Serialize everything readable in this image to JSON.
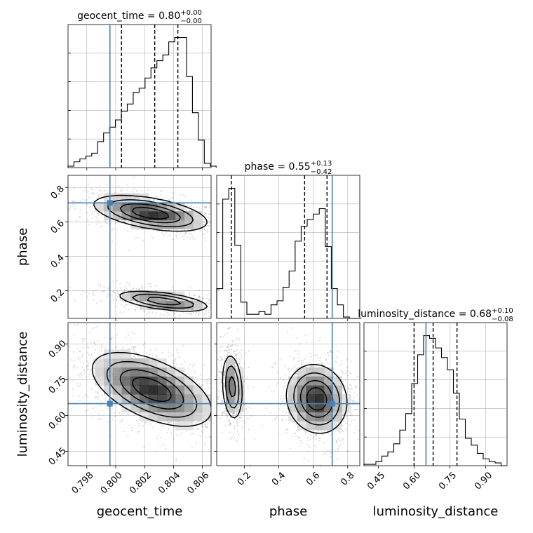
{
  "chart_data": {
    "type": "corner",
    "parameters": [
      "geocent_time",
      "phase",
      "luminosity_distance"
    ],
    "truths": {
      "geocent_time": 0.7996,
      "phase": 0.71,
      "luminosity_distance": 0.65
    },
    "truth_color": "#4682b4",
    "axis_labels": {
      "geocent_time": "geocent_time",
      "phase": "phase",
      "luminosity_distance": "luminosity_distance"
    },
    "ranges": {
      "geocent_time": [
        0.7967,
        0.8066
      ],
      "phase": [
        0.04,
        0.87
      ],
      "luminosity_distance": [
        0.39,
        0.99
      ]
    },
    "ticks": {
      "geocent_time": {
        "values": [
          0.798,
          0.8,
          0.802,
          0.804,
          0.806
        ],
        "labels": [
          "0.798",
          "0.800",
          "0.802",
          "0.804",
          "0.806"
        ]
      },
      "phase": {
        "values": [
          0.2,
          0.4,
          0.6,
          0.8
        ],
        "labels": [
          "0.2",
          "0.4",
          "0.6",
          "0.8"
        ]
      },
      "luminosity_distance": {
        "values": [
          0.45,
          0.6,
          0.75,
          0.9
        ],
        "labels": [
          "0.45",
          "0.60",
          "0.75",
          "0.90"
        ]
      }
    },
    "marginals": [
      {
        "param": "geocent_time",
        "title": {
          "base": "geocent_time = 0.80",
          "plus": "+0.00",
          "minus": "−0.00"
        },
        "quantiles": [
          0.8004,
          0.8027,
          0.8043
        ],
        "bins": {
          "start": 0.7967,
          "width": 0.00041,
          "counts": [
            1,
            4,
            6,
            8,
            10,
            18,
            24,
            28,
            33,
            39,
            44,
            52,
            55,
            62,
            69,
            74,
            78,
            87,
            90,
            90,
            63,
            38,
            19,
            3,
            1
          ]
        }
      },
      {
        "param": "phase",
        "title": {
          "base": "phase = 0.55",
          "plus": "+0.13",
          "minus": "−0.42"
        },
        "quantiles": [
          0.125,
          0.55,
          0.68
        ],
        "bins": {
          "start": 0.04,
          "width": 0.035,
          "counts": [
            22,
            88,
            96,
            54,
            12,
            3,
            3,
            5,
            3,
            10,
            13,
            23,
            35,
            57,
            68,
            73,
            77,
            81,
            53,
            22,
            10,
            1,
            0,
            0
          ]
        }
      },
      {
        "param": "luminosity_distance",
        "title": {
          "base": "luminosity_distance = 0.68",
          "plus": "+0.10",
          "minus": "−0.08"
        },
        "quantiles": [
          0.6,
          0.68,
          0.78
        ],
        "bins": {
          "start": 0.39,
          "width": 0.025,
          "counts": [
            1,
            1,
            3,
            7,
            10,
            16,
            26,
            38,
            60,
            81,
            95,
            93,
            86,
            79,
            70,
            53,
            34,
            20,
            15,
            9,
            5,
            3,
            2,
            0
          ]
        }
      }
    ],
    "joint": [
      {
        "x": "geocent_time",
        "y": "phase",
        "modes": [
          {
            "cx": 0.8024,
            "cy": 0.65,
            "sx": 0.0019,
            "sy": 0.05,
            "rho": -0.5,
            "weight": 0.58
          },
          {
            "cx": 0.8033,
            "cy": 0.14,
            "sx": 0.0016,
            "sy": 0.03,
            "rho": -0.55,
            "weight": 0.42
          }
        ]
      },
      {
        "x": "geocent_time",
        "y": "luminosity_distance",
        "modes": [
          {
            "cx": 0.8025,
            "cy": 0.71,
            "sx": 0.002,
            "sy": 0.075,
            "rho": -0.55,
            "weight": 1.0
          }
        ]
      },
      {
        "x": "phase",
        "y": "luminosity_distance",
        "modes": [
          {
            "cx": 0.13,
            "cy": 0.72,
            "sx": 0.03,
            "sy": 0.07,
            "rho": -0.2,
            "weight": 0.4
          },
          {
            "cx": 0.62,
            "cy": 0.67,
            "sx": 0.085,
            "sy": 0.07,
            "rho": -0.1,
            "weight": 0.6
          }
        ]
      }
    ]
  }
}
